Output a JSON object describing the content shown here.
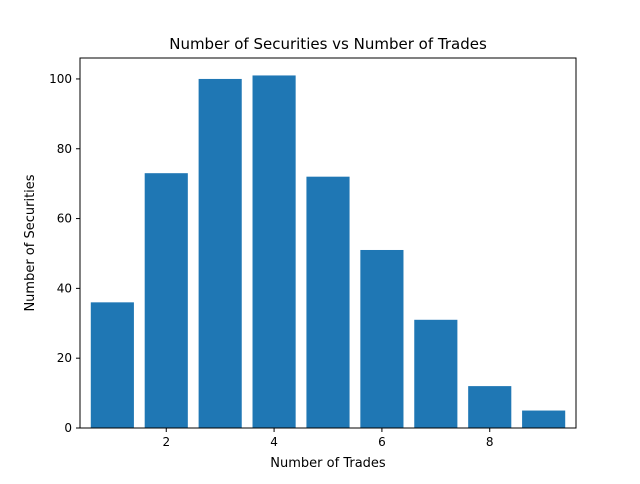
{
  "chart_data": {
    "type": "bar",
    "title": "Number of Securities vs Number of Trades",
    "xlabel": "Number of Trades",
    "ylabel": "Number of Securities",
    "categories": [
      1,
      2,
      3,
      4,
      5,
      6,
      7,
      8,
      9
    ],
    "values": [
      36,
      73,
      100,
      101,
      72,
      51,
      31,
      12,
      5
    ],
    "xlim": [
      0.4,
      9.6
    ],
    "ylim": [
      0,
      106
    ],
    "xticks": [
      2,
      4,
      6,
      8
    ],
    "yticks": [
      0,
      20,
      40,
      60,
      80,
      100
    ],
    "bar_color": "#1f77b4",
    "grid": false,
    "legend": "none"
  }
}
